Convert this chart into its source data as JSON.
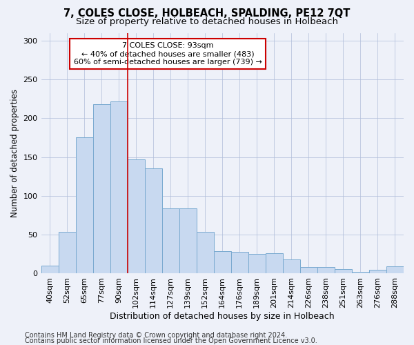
{
  "title": "7, COLES CLOSE, HOLBEACH, SPALDING, PE12 7QT",
  "subtitle": "Size of property relative to detached houses in Holbeach",
  "xlabel": "Distribution of detached houses by size in Holbeach",
  "ylabel": "Number of detached properties",
  "categories": [
    "40sqm",
    "52sqm",
    "65sqm",
    "77sqm",
    "90sqm",
    "102sqm",
    "114sqm",
    "127sqm",
    "139sqm",
    "152sqm",
    "164sqm",
    "176sqm",
    "189sqm",
    "201sqm",
    "214sqm",
    "226sqm",
    "238sqm",
    "251sqm",
    "263sqm",
    "276sqm",
    "288sqm"
  ],
  "values": [
    10,
    54,
    175,
    218,
    222,
    147,
    135,
    84,
    84,
    54,
    29,
    28,
    25,
    26,
    18,
    8,
    8,
    6,
    2,
    5,
    9
  ],
  "bar_color": "#c8d9f0",
  "bar_edge_color": "#7aaad0",
  "vline_x_idx": 4,
  "vline_color": "#cc0000",
  "annotation_line1": "7 COLES CLOSE: 93sqm",
  "annotation_line2": "← 40% of detached houses are smaller (483)",
  "annotation_line3": "60% of semi-detached houses are larger (739) →",
  "annotation_box_color": "#ffffff",
  "annotation_box_edge_color": "#cc0000",
  "ylim": [
    0,
    310
  ],
  "yticks": [
    0,
    50,
    100,
    150,
    200,
    250,
    300
  ],
  "footer1": "Contains HM Land Registry data © Crown copyright and database right 2024.",
  "footer2": "Contains public sector information licensed under the Open Government Licence v3.0.",
  "title_fontsize": 10.5,
  "subtitle_fontsize": 9.5,
  "xlabel_fontsize": 9,
  "ylabel_fontsize": 8.5,
  "tick_fontsize": 8,
  "annotation_fontsize": 8,
  "footer_fontsize": 7,
  "background_color": "#eef1f9",
  "plot_bg_color": "#eef1f9",
  "grid_color": "#b0bdd8"
}
